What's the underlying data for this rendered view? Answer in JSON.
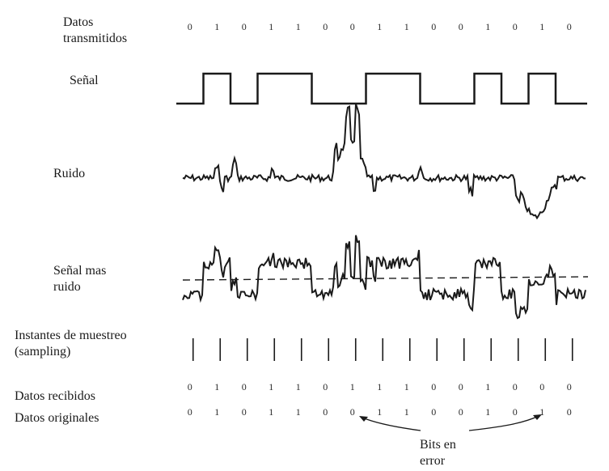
{
  "labels": {
    "datos_transmitidos": "Datos\ntransmitidos",
    "senal": "Señal",
    "ruido": "Ruido",
    "senal_mas_ruido": "Señal  mas\nruido",
    "instantes": "Instantes  de muestreo\n(sampling)",
    "datos_recibidos": "Datos  recibidos",
    "datos_originales": "Datos  originales",
    "bits_en_error": "Bits en\nerror"
  },
  "bits": {
    "transmitidos": [
      "0",
      "1",
      "0",
      "1",
      "1",
      "0",
      "0",
      "1",
      "1",
      "0",
      "0",
      "1",
      "0",
      "1",
      "0"
    ],
    "recibidos": [
      "0",
      "1",
      "0",
      "1",
      "1",
      "0",
      "1",
      "1",
      "1",
      "0",
      "0",
      "1",
      "0",
      "0",
      "0"
    ],
    "originales": [
      "0",
      "1",
      "0",
      "1",
      "1",
      "0",
      "0",
      "1",
      "1",
      "0",
      "0",
      "1",
      "0",
      "1",
      "0"
    ]
  },
  "error_positions": [
    6,
    13
  ],
  "colors": {
    "ink": "#1a1a1a",
    "background": "#ffffff"
  }
}
